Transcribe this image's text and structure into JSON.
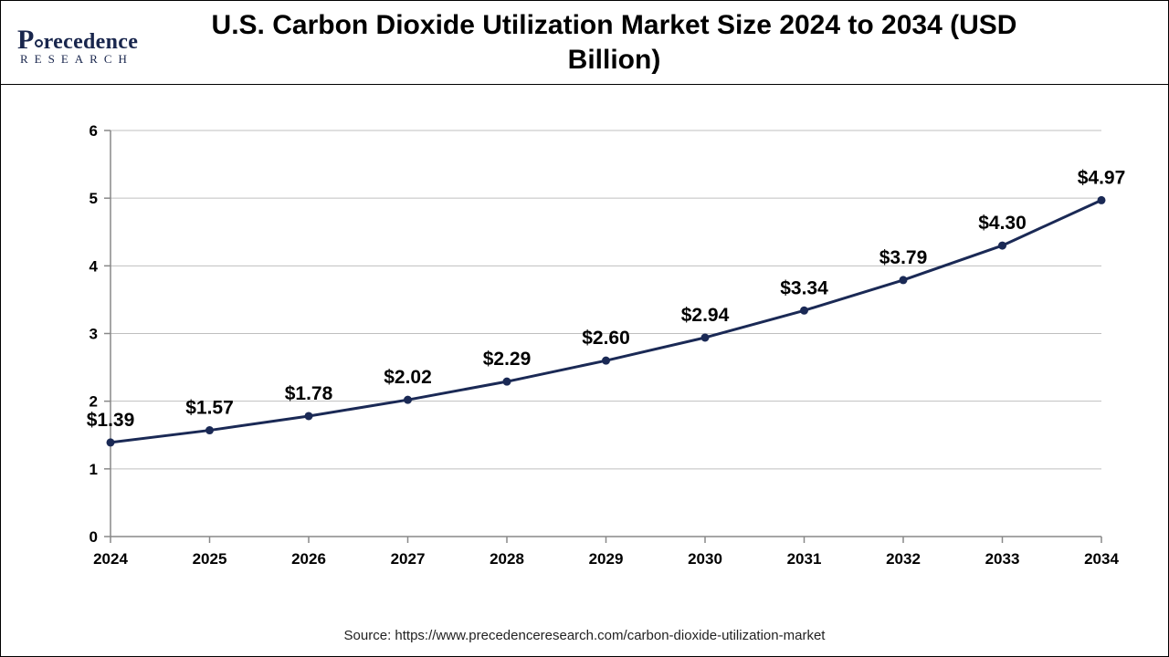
{
  "header": {
    "logo_line1_a": "P",
    "logo_line1_b": "recedence",
    "logo_line2": "RESEARCH",
    "title": "U.S. Carbon Dioxide Utilization Market Size 2024 to 2034 (USD Billion)"
  },
  "chart": {
    "type": "line",
    "categories": [
      "2024",
      "2025",
      "2026",
      "2027",
      "2028",
      "2029",
      "2030",
      "2031",
      "2032",
      "2033",
      "2034"
    ],
    "values": [
      1.39,
      1.57,
      1.78,
      2.02,
      2.29,
      2.6,
      2.94,
      3.34,
      3.79,
      4.3,
      4.97
    ],
    "labels": [
      "$1.39",
      "$1.57",
      "$1.78",
      "$2.02",
      "$2.29",
      "$2.60",
      "$2.94",
      "$3.34",
      "$3.79",
      "$4.30",
      "$4.97"
    ],
    "ylim": [
      0,
      6
    ],
    "ytick_step": 1,
    "line_color": "#1a2955",
    "marker_color": "#1a2955",
    "line_width": 3,
    "marker_radius": 4.5,
    "grid_color": "#bfbfbf",
    "axis_color": "#888888",
    "background_color": "#ffffff",
    "tick_font_size": 17,
    "tick_font_weight": "700",
    "label_font_size": 21,
    "label_font_weight": "700"
  },
  "source": "Source: https://www.precedenceresearch.com/carbon-dioxide-utilization-market"
}
